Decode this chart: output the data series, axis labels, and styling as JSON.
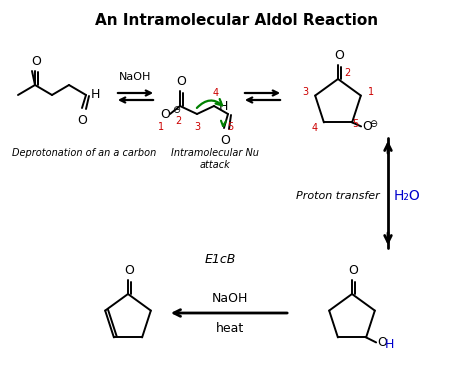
{
  "title": "An Intramolecular Aldol Reaction",
  "title_fontsize": 11,
  "background_color": "#ffffff",
  "label_deprotonation": "Deprotonation of an a carbon",
  "label_nu_attack": "Intramolecular Nu\nattack",
  "label_proton_transfer": "Proton transfer",
  "label_e1cb": "E1cB",
  "label_naoh1": "NaOH",
  "label_naoh2": "NaOH",
  "label_heat": "heat",
  "label_h2o": "H₂O",
  "text_color": "#000000",
  "red_color": "#cc0000",
  "blue_color": "#0000cc",
  "green_color": "#008000"
}
